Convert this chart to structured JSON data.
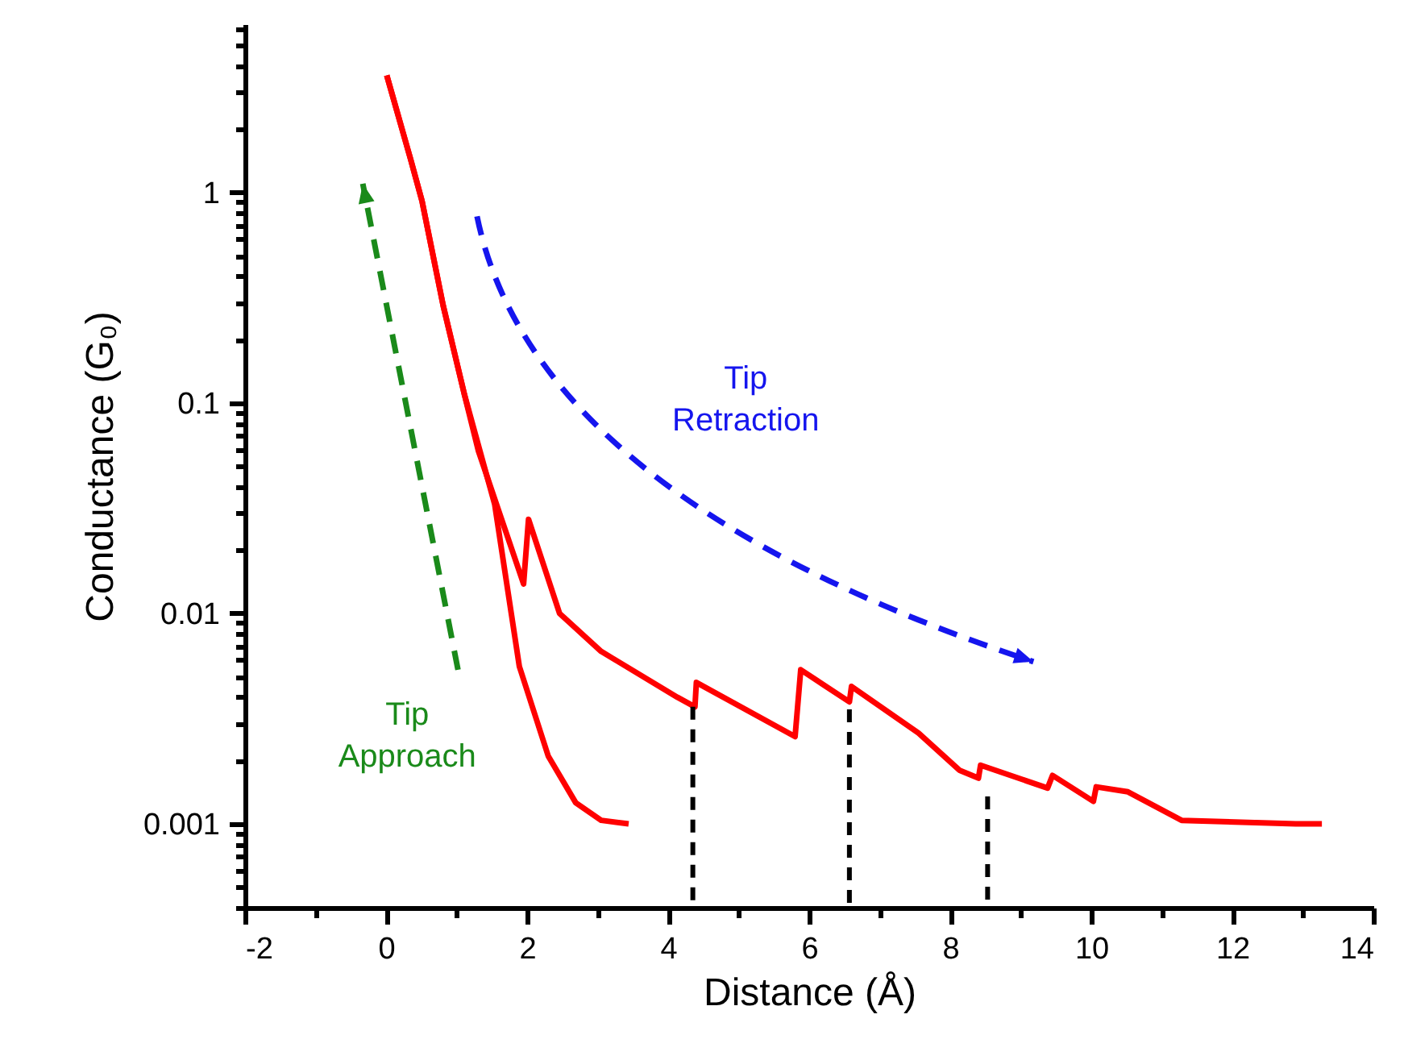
{
  "chart_data": {
    "type": "line",
    "xlabel": "Distance (Å)",
    "ylabel": "Conductance (G₀)",
    "log": "y",
    "xlim": [
      -2,
      14
    ],
    "xticks": [
      -2,
      {
        "value": -1,
        "label": null
      },
      0,
      {
        "value": 1,
        "label": null
      },
      2,
      {
        "value": 3,
        "label": null
      },
      4,
      {
        "value": 5,
        "label": null
      },
      6,
      {
        "value": 7,
        "label": null
      },
      8,
      {
        "value": 9,
        "label": null
      },
      10,
      {
        "value": 11,
        "label": null
      },
      12,
      {
        "value": 13,
        "label": null
      },
      14
    ],
    "ylim": [
      0.0004,
      6.3
    ],
    "yticks": [
      {
        "value": 0.0004,
        "label": null
      },
      {
        "value": 0.0005,
        "label": null
      },
      {
        "value": 0.0006,
        "label": null
      },
      {
        "value": 0.0007,
        "label": null
      },
      {
        "value": 0.0008,
        "label": null
      },
      {
        "value": 0.0009,
        "label": null
      },
      0.001,
      {
        "value": 0.002,
        "label": null
      },
      {
        "value": 0.003,
        "label": null
      },
      {
        "value": 0.004,
        "label": null
      },
      {
        "value": 0.005,
        "label": null
      },
      {
        "value": 0.006,
        "label": null
      },
      {
        "value": 0.007,
        "label": null
      },
      {
        "value": 0.008,
        "label": null
      },
      {
        "value": 0.009,
        "label": null
      },
      0.01,
      {
        "value": 0.02,
        "label": null
      },
      {
        "value": 0.03,
        "label": null
      },
      {
        "value": 0.04,
        "label": null
      },
      {
        "value": 0.05,
        "label": null
      },
      {
        "value": 0.06,
        "label": null
      },
      {
        "value": 0.07,
        "label": null
      },
      {
        "value": 0.08,
        "label": null
      },
      {
        "value": 0.09,
        "label": null
      },
      0.1,
      {
        "value": 0.2,
        "label": null
      },
      {
        "value": 0.3,
        "label": null
      },
      {
        "value": 0.4,
        "label": null
      },
      {
        "value": 0.5,
        "label": null
      },
      {
        "value": 0.6,
        "label": null
      },
      {
        "value": 0.7,
        "label": null
      },
      {
        "value": 0.8,
        "label": null
      },
      {
        "value": 0.9,
        "label": null
      },
      1,
      {
        "value": 2,
        "label": null
      },
      {
        "value": 3,
        "label": null
      },
      {
        "value": 4,
        "label": null
      },
      {
        "value": 5,
        "label": null
      },
      {
        "value": 6,
        "label": null
      }
    ],
    "series": [
      {
        "color": "#ff0000",
        "line_style": "solid",
        "x": [
          0.01,
          0.35,
          0.51,
          0.81,
          1.11,
          1.31,
          1.95,
          2.02,
          2.46,
          3.05,
          4.13,
          4.38,
          4.4,
          5.8,
          5.88,
          6.57,
          6.6,
          7.55,
          8.13,
          8.4,
          8.43,
          9.38,
          9.45,
          10.03,
          10.07,
          10.52,
          11.28,
          12.9,
          13.27
        ],
        "values": [
          3.6,
          1.43,
          0.91,
          0.29,
          0.11,
          0.059,
          0.0138,
          0.028,
          0.01,
          0.0066,
          0.004,
          0.0036,
          0.0047,
          0.0026,
          0.0054,
          0.0038,
          0.0045,
          0.0027,
          0.0018,
          0.00165,
          0.0019,
          0.00148,
          0.0017,
          0.00128,
          0.0015,
          0.00142,
          0.00104,
          0.001,
          0.001
        ]
      },
      {
        "color": "#ff0000",
        "line_style": "solid",
        "x": [
          0.01,
          0.35,
          0.51,
          0.81,
          1.11,
          1.54,
          1.89,
          2.3,
          2.69,
          3.05,
          3.44
        ],
        "values": [
          3.6,
          1.43,
          0.91,
          0.29,
          0.11,
          0.033,
          0.0056,
          0.0021,
          0.00126,
          0.00104,
          0.001
        ]
      },
      {
        "color": "#000000",
        "line_style": "dashed",
        "x": [
          4.35,
          4.35
        ],
        "values": [
          0.0036,
          0.0004
        ]
      },
      {
        "color": "#000000",
        "line_style": "dashed",
        "x": [
          6.57,
          6.57
        ],
        "values": [
          0.0035,
          0.0004
        ]
      },
      {
        "color": "#000000",
        "line_style": "dashed",
        "x": [
          8.53,
          8.53
        ],
        "values": [
          0.00135,
          0.0004
        ]
      }
    ],
    "annotations": [
      "Tip Approach",
      "Tip Retraction"
    ]
  }
}
